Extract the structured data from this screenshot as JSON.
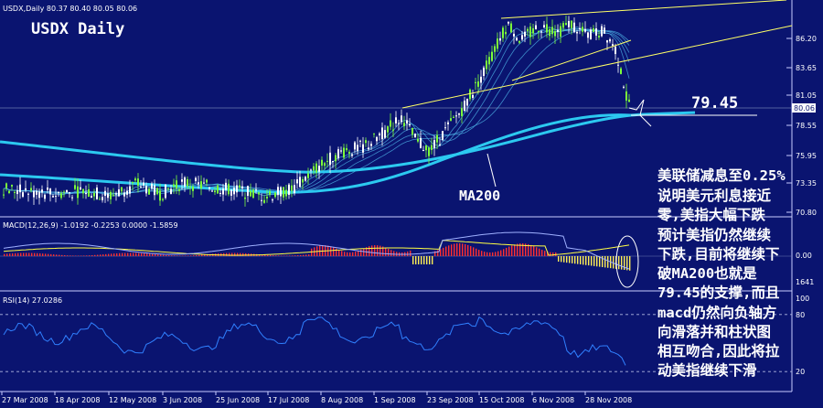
{
  "chart_data": [
    {
      "type": "candlestick",
      "header": "USDX,Daily  80.37 80.40 80.05 80.06",
      "title": "USDX Daily",
      "y_ticks": [
        "86.20",
        "83.65",
        "81.05",
        "78.55",
        "75.95",
        "73.35",
        "70.80"
      ],
      "last_price": "80.06",
      "support_level": 79.45,
      "support_label": "79.45",
      "ma200_label": "MA200",
      "x_labels": [
        "27 Mar 2008",
        "18 Apr 2008",
        "12 May 2008",
        "3 Jun 2008",
        "25 Jun 2008",
        "17 Jul 2008",
        "8 Aug 2008",
        "1 Sep 2008",
        "23 Sep 2008",
        "15 Oct 2008",
        "6 Nov 2008",
        "28 Nov 2008"
      ],
      "annotation_lines": [
        "美联储减息至0.25%",
        "说明美元利息接近",
        "零,美指大幅下跌",
        "预计美指仍然继续",
        "下跌,目前将继续下",
        "破MA200也就是",
        "79.45的支撑,而且",
        "macd仍然向负轴方",
        "向滑落并和柱状图",
        "相互吻合,因此将拉",
        "动美指继续下滑"
      ]
    },
    {
      "type": "bar",
      "header": "MACD(12,26,9) -1.0192 -0.2253 0.0000 -1.5859",
      "y_ticks": [
        "0.00",
        "1641"
      ]
    },
    {
      "type": "line",
      "header": "RSI(14) 27.0286",
      "y_ticks": [
        "100",
        "80",
        "20"
      ],
      "levels": [
        80,
        20
      ]
    }
  ],
  "colors": {
    "background": "#0a1470",
    "grid": "#6c78b0",
    "candle_up": "#7cff3a",
    "candle_down": "#ffffff",
    "ma200": "#2cc9f0",
    "ma_fan": "#4fb6e8",
    "trendline": "#ffff66",
    "macd_signal": "#ffff44",
    "macd_line": "#9fb0ff",
    "macd_pos": "#ff3030",
    "macd_neg": "#ffee55",
    "rsi": "#3080ff"
  }
}
